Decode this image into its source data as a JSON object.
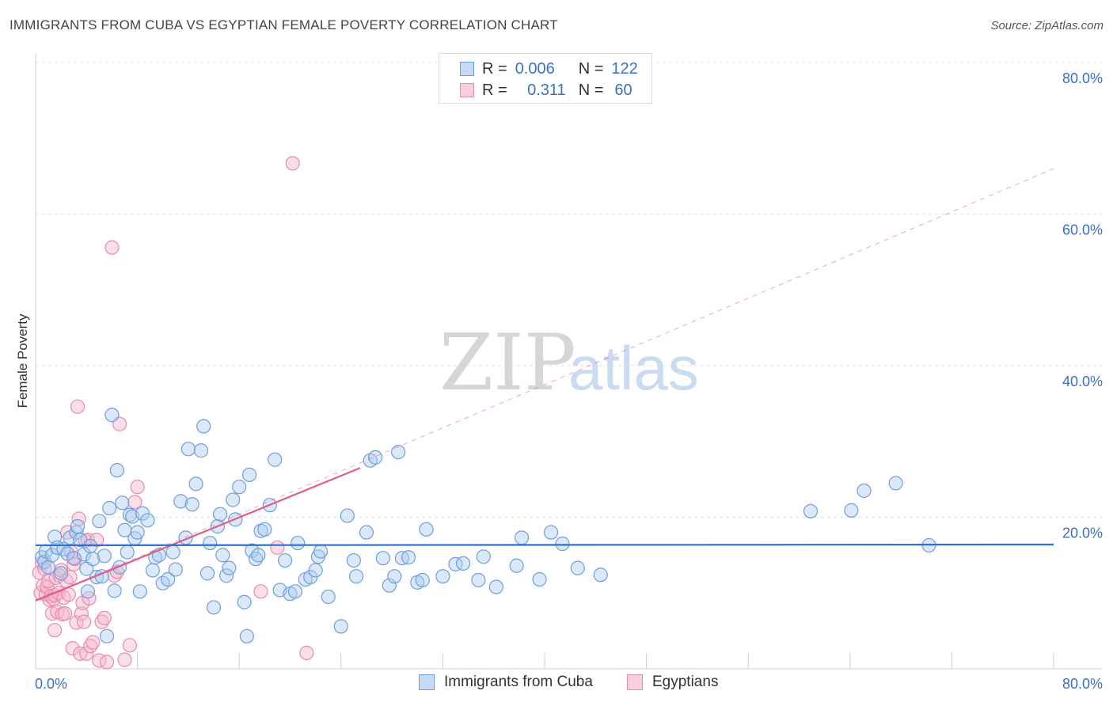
{
  "title": "IMMIGRANTS FROM CUBA VS EGYPTIAN FEMALE POVERTY CORRELATION CHART",
  "source": "Source: ZipAtlas.com",
  "watermark": {
    "zip": "ZIP",
    "atlas": "atlas"
  },
  "legend": {
    "r_label": "R =",
    "n_label": "N =",
    "rows": [
      {
        "r": "0.006",
        "n": "122"
      },
      {
        "r": "0.311",
        "n": "60"
      }
    ]
  },
  "colors": {
    "blue_fill": "#aecbf0",
    "blue_stroke": "#6e9fdc",
    "blue_line": "#2e6fd1",
    "pink_fill": "#f6b7cb",
    "pink_stroke": "#e98aac",
    "pink_line": "#e05c8a",
    "axis_text": "#3a6fc4",
    "grid": "#e0e0e0"
  },
  "chart_data": {
    "type": "scatter",
    "title": "IMMIGRANTS FROM CUBA VS EGYPTIAN FEMALE POVERTY CORRELATION CHART",
    "xlabel": "",
    "ylabel": "Female Poverty",
    "xlim": [
      0,
      80
    ],
    "ylim": [
      0,
      80
    ],
    "x_tick_labels": [
      "0.0%",
      "80.0%"
    ],
    "y_ticks": [
      20,
      40,
      60,
      80
    ],
    "y_tick_labels": [
      "20.0%",
      "40.0%",
      "60.0%",
      "80.0%"
    ],
    "grid": true,
    "legend_position": "bottom",
    "series": [
      {
        "name": "Immigrants from Cuba",
        "trend": {
          "x": [
            0,
            80
          ],
          "y": [
            16.3,
            16.4
          ]
        },
        "points": [
          [
            0.5,
            14.7
          ],
          [
            0.7,
            14.1
          ],
          [
            0.8,
            15.5
          ],
          [
            1.0,
            13.4
          ],
          [
            1.3,
            15.0
          ],
          [
            1.5,
            17.4
          ],
          [
            1.7,
            16.0
          ],
          [
            2.0,
            12.6
          ],
          [
            2.2,
            15.8
          ],
          [
            2.5,
            15.2
          ],
          [
            2.7,
            17.3
          ],
          [
            3.0,
            14.6
          ],
          [
            3.2,
            18.0
          ],
          [
            3.3,
            18.8
          ],
          [
            3.5,
            17.0
          ],
          [
            3.8,
            15.1
          ],
          [
            4.0,
            13.2
          ],
          [
            4.1,
            10.2
          ],
          [
            4.3,
            16.2
          ],
          [
            4.5,
            14.5
          ],
          [
            4.8,
            12.1
          ],
          [
            5.0,
            19.5
          ],
          [
            5.2,
            12.2
          ],
          [
            5.4,
            14.9
          ],
          [
            5.6,
            4.3
          ],
          [
            5.8,
            21.2
          ],
          [
            6.0,
            33.5
          ],
          [
            6.2,
            10.3
          ],
          [
            6.4,
            26.2
          ],
          [
            6.6,
            13.4
          ],
          [
            6.8,
            21.9
          ],
          [
            7.0,
            18.3
          ],
          [
            7.2,
            15.4
          ],
          [
            7.4,
            20.3
          ],
          [
            7.6,
            20.1
          ],
          [
            7.8,
            17.2
          ],
          [
            8.0,
            18.0
          ],
          [
            8.2,
            10.2
          ],
          [
            8.4,
            20.5
          ],
          [
            8.8,
            19.6
          ],
          [
            9.2,
            13.0
          ],
          [
            9.4,
            14.7
          ],
          [
            9.7,
            15.0
          ],
          [
            10.0,
            11.3
          ],
          [
            10.4,
            11.8
          ],
          [
            10.8,
            15.4
          ],
          [
            11.0,
            13.1
          ],
          [
            11.4,
            22.1
          ],
          [
            11.8,
            17.3
          ],
          [
            12.0,
            29.0
          ],
          [
            12.3,
            21.7
          ],
          [
            12.6,
            24.4
          ],
          [
            13.0,
            28.8
          ],
          [
            13.2,
            32.0
          ],
          [
            13.5,
            12.6
          ],
          [
            13.7,
            16.6
          ],
          [
            14.0,
            8.1
          ],
          [
            14.3,
            18.8
          ],
          [
            14.5,
            20.4
          ],
          [
            14.7,
            15.0
          ],
          [
            15.0,
            12.3
          ],
          [
            15.2,
            13.3
          ],
          [
            15.5,
            22.3
          ],
          [
            15.7,
            19.7
          ],
          [
            16.0,
            24.0
          ],
          [
            16.4,
            8.8
          ],
          [
            16.6,
            4.3
          ],
          [
            16.8,
            25.6
          ],
          [
            17.0,
            15.6
          ],
          [
            17.3,
            14.5
          ],
          [
            17.5,
            15.0
          ],
          [
            17.7,
            18.2
          ],
          [
            18.0,
            18.4
          ],
          [
            18.4,
            21.6
          ],
          [
            18.8,
            27.6
          ],
          [
            19.2,
            10.4
          ],
          [
            19.6,
            14.3
          ],
          [
            20.0,
            9.9
          ],
          [
            20.4,
            10.2
          ],
          [
            20.6,
            16.6
          ],
          [
            21.2,
            11.8
          ],
          [
            21.6,
            12.1
          ],
          [
            22.0,
            13.0
          ],
          [
            22.2,
            14.8
          ],
          [
            22.4,
            15.5
          ],
          [
            23.0,
            9.5
          ],
          [
            24.0,
            5.6
          ],
          [
            24.5,
            20.2
          ],
          [
            25.0,
            14.3
          ],
          [
            25.2,
            12.2
          ],
          [
            26.0,
            18.0
          ],
          [
            26.3,
            27.5
          ],
          [
            26.7,
            27.9
          ],
          [
            27.3,
            14.6
          ],
          [
            27.8,
            11.0
          ],
          [
            28.2,
            12.2
          ],
          [
            28.5,
            28.6
          ],
          [
            28.8,
            14.6
          ],
          [
            29.3,
            14.7
          ],
          [
            30.0,
            11.4
          ],
          [
            30.4,
            11.7
          ],
          [
            30.7,
            18.4
          ],
          [
            32.0,
            12.2
          ],
          [
            33.0,
            13.8
          ],
          [
            33.6,
            13.9
          ],
          [
            34.8,
            11.7
          ],
          [
            35.2,
            14.8
          ],
          [
            36.2,
            10.8
          ],
          [
            37.8,
            13.6
          ],
          [
            38.2,
            17.3
          ],
          [
            39.6,
            11.8
          ],
          [
            40.5,
            18.0
          ],
          [
            41.4,
            16.5
          ],
          [
            42.6,
            13.3
          ],
          [
            44.4,
            12.4
          ],
          [
            60.9,
            20.8
          ],
          [
            64.1,
            20.9
          ],
          [
            65.1,
            23.5
          ],
          [
            67.6,
            24.5
          ],
          [
            70.2,
            16.3
          ]
        ]
      },
      {
        "name": "Egyptians",
        "trend": {
          "x": [
            0,
            25.5
          ],
          "y": [
            9.0,
            26.5
          ]
        },
        "trend_extended": {
          "x": [
            0,
            80
          ],
          "y": [
            9.0,
            66.0
          ]
        },
        "points": [
          [
            0.3,
            12.7
          ],
          [
            0.4,
            10.0
          ],
          [
            0.5,
            14.0
          ],
          [
            0.6,
            11.0
          ],
          [
            0.7,
            13.2
          ],
          [
            0.8,
            9.8
          ],
          [
            0.9,
            10.8
          ],
          [
            1.0,
            11.6
          ],
          [
            1.1,
            9.1
          ],
          [
            1.2,
            9.6
          ],
          [
            1.3,
            7.3
          ],
          [
            1.4,
            9.2
          ],
          [
            1.5,
            9.7
          ],
          [
            1.6,
            12.0
          ],
          [
            1.7,
            7.5
          ],
          [
            1.8,
            10.0
          ],
          [
            1.9,
            12.3
          ],
          [
            2.0,
            13.0
          ],
          [
            2.1,
            7.2
          ],
          [
            2.2,
            9.4
          ],
          [
            2.3,
            7.3
          ],
          [
            2.4,
            11.6
          ],
          [
            2.5,
            18.0
          ],
          [
            2.6,
            9.8
          ],
          [
            2.7,
            12.1
          ],
          [
            2.8,
            15.4
          ],
          [
            2.9,
            2.7
          ],
          [
            3.0,
            13.8
          ],
          [
            3.1,
            14.5
          ],
          [
            3.2,
            6.1
          ],
          [
            3.3,
            34.6
          ],
          [
            3.4,
            19.8
          ],
          [
            3.5,
            2.0
          ],
          [
            3.6,
            7.3
          ],
          [
            3.7,
            8.7
          ],
          [
            3.8,
            6.2
          ],
          [
            3.9,
            16.9
          ],
          [
            4.0,
            2.0
          ],
          [
            4.1,
            17.0
          ],
          [
            4.2,
            9.3
          ],
          [
            4.3,
            3.0
          ],
          [
            4.5,
            3.5
          ],
          [
            4.8,
            17.0
          ],
          [
            5.0,
            1.1
          ],
          [
            5.2,
            6.2
          ],
          [
            5.4,
            6.7
          ],
          [
            5.6,
            0.9
          ],
          [
            6.0,
            55.6
          ],
          [
            6.2,
            12.3
          ],
          [
            6.4,
            12.8
          ],
          [
            6.6,
            32.3
          ],
          [
            7.0,
            1.2
          ],
          [
            7.4,
            3.1
          ],
          [
            7.8,
            22.0
          ],
          [
            8.0,
            24.0
          ],
          [
            17.7,
            10.2
          ],
          [
            19.0,
            16.0
          ],
          [
            20.2,
            66.7
          ],
          [
            21.3,
            2.1
          ],
          [
            1.5,
            5.1
          ]
        ]
      }
    ]
  },
  "bottom_legend": {
    "items": [
      "Immigrants from Cuba",
      "Egyptians"
    ]
  }
}
